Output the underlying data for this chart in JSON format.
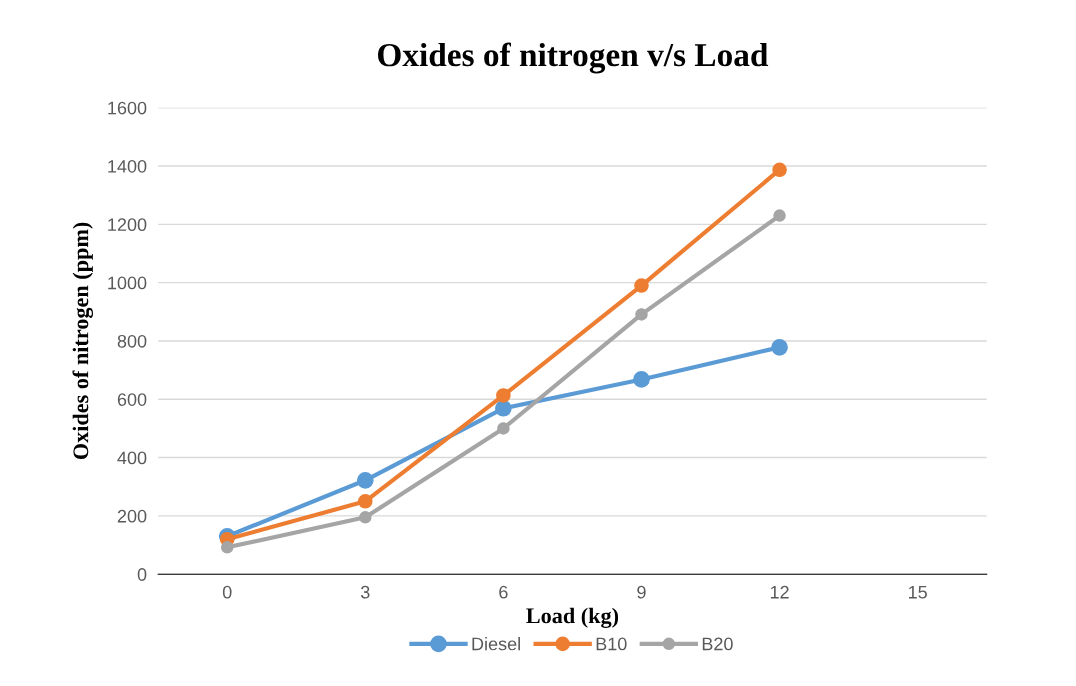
{
  "chart_data": {
    "type": "line",
    "title": "Oxides of nitrogen v/s Load",
    "xlabel": "Load (kg)",
    "ylabel": "Oxides of nitrogen (ppm)",
    "categories": [
      "0",
      "3",
      "6",
      "9",
      "12",
      "15"
    ],
    "series": [
      {
        "name": "Diesel",
        "color": "#5b9bd5",
        "values": [
          130,
          322,
          569,
          668,
          778,
          null
        ]
      },
      {
        "name": "B10",
        "color": "#ed7d31",
        "values": [
          120,
          250,
          613,
          990,
          1387,
          null
        ]
      },
      {
        "name": "B20",
        "color": "#a5a5a5",
        "values": [
          92,
          195,
          500,
          891,
          1230,
          null
        ]
      }
    ],
    "ylim": [
      0,
      1600
    ],
    "yticks": [
      0,
      200,
      400,
      600,
      800,
      1000,
      1200,
      1400,
      1600
    ],
    "grid": "y",
    "legend": "bottom",
    "marker": "circle",
    "line_style": "solid"
  }
}
